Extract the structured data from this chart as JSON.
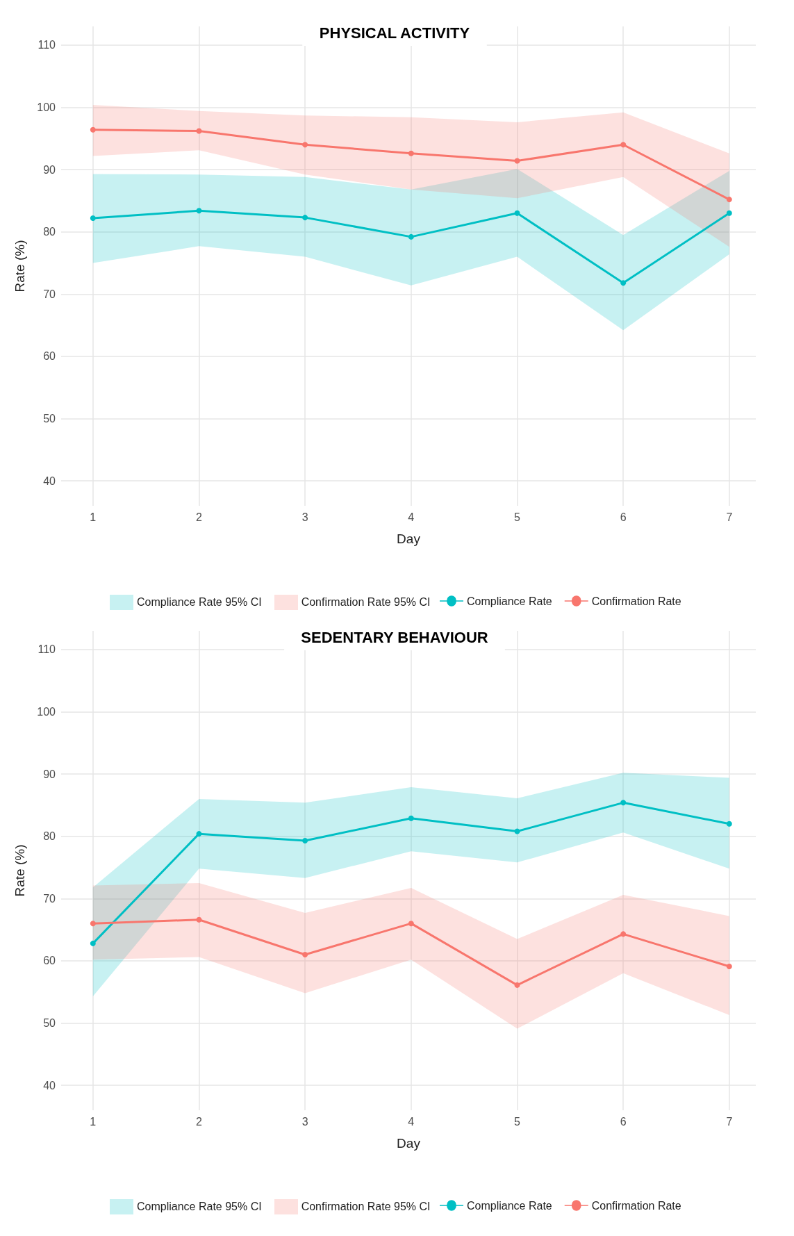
{
  "chart_data": [
    {
      "type": "line",
      "title": "PHYSICAL ACTIVITY",
      "xlabel": "Day",
      "ylabel": "Rate (%)",
      "x": [
        1,
        2,
        3,
        4,
        5,
        6,
        7
      ],
      "xlim": [
        0.7,
        7.25
      ],
      "xticks": [
        1,
        2,
        3,
        4,
        5,
        6,
        7
      ],
      "ylim": [
        36,
        113
      ],
      "yticks": [
        40,
        50,
        60,
        70,
        80,
        90,
        100,
        110
      ],
      "grid": true,
      "legend": "bottom",
      "marker": "circle",
      "line_style": "solid",
      "annotations": [
        "Compliance Rate 95% CI",
        "Confirmation Rate 95% CI"
      ],
      "series": [
        {
          "name": "Compliance Rate",
          "color": "#00bfc4",
          "values": [
            82.2,
            83.4,
            82.3,
            79.2,
            83.0,
            71.8,
            83.0
          ],
          "lower": [
            75.0,
            77.7,
            76.0,
            71.4,
            76.0,
            64.2,
            76.4
          ],
          "upper": [
            89.3,
            89.2,
            88.8,
            86.8,
            90.1,
            79.5,
            89.8
          ]
        },
        {
          "name": "Confirmation Rate",
          "color": "#f8766d",
          "values": [
            96.4,
            96.2,
            94.0,
            92.6,
            91.4,
            94.0,
            85.2
          ],
          "lower": [
            92.2,
            93.1,
            89.2,
            86.8,
            85.4,
            88.8,
            77.6
          ],
          "upper": [
            100.4,
            99.4,
            98.7,
            98.4,
            97.6,
            99.2,
            92.6
          ]
        }
      ]
    },
    {
      "type": "line",
      "title": "SEDENTARY BEHAVIOUR",
      "xlabel": "Day",
      "ylabel": "Rate (%)",
      "x": [
        1,
        2,
        3,
        4,
        5,
        6,
        7
      ],
      "xlim": [
        0.7,
        7.25
      ],
      "xticks": [
        1,
        2,
        3,
        4,
        5,
        6,
        7
      ],
      "ylim": [
        36,
        113
      ],
      "yticks": [
        40,
        50,
        60,
        70,
        80,
        90,
        100,
        110
      ],
      "grid": true,
      "legend": "bottom",
      "marker": "circle",
      "line_style": "solid",
      "annotations": [
        "Compliance Rate 95% CI",
        "Confirmation Rate 95% CI"
      ],
      "series": [
        {
          "name": "Compliance Rate",
          "color": "#00bfc4",
          "values": [
            62.8,
            80.4,
            79.3,
            82.9,
            80.8,
            85.4,
            82.0
          ],
          "lower": [
            54.3,
            74.8,
            73.3,
            77.6,
            75.8,
            80.6,
            74.8
          ],
          "upper": [
            71.8,
            86.0,
            85.4,
            87.9,
            86.1,
            90.2,
            89.4
          ]
        },
        {
          "name": "Confirmation Rate",
          "color": "#f8766d",
          "values": [
            66.0,
            66.6,
            61.0,
            66.0,
            56.1,
            64.3,
            59.1
          ],
          "lower": [
            60.2,
            60.6,
            54.8,
            60.2,
            49.1,
            58.0,
            51.3
          ],
          "upper": [
            72.1,
            72.5,
            67.7,
            71.7,
            63.5,
            70.6,
            67.2
          ]
        }
      ]
    }
  ]
}
